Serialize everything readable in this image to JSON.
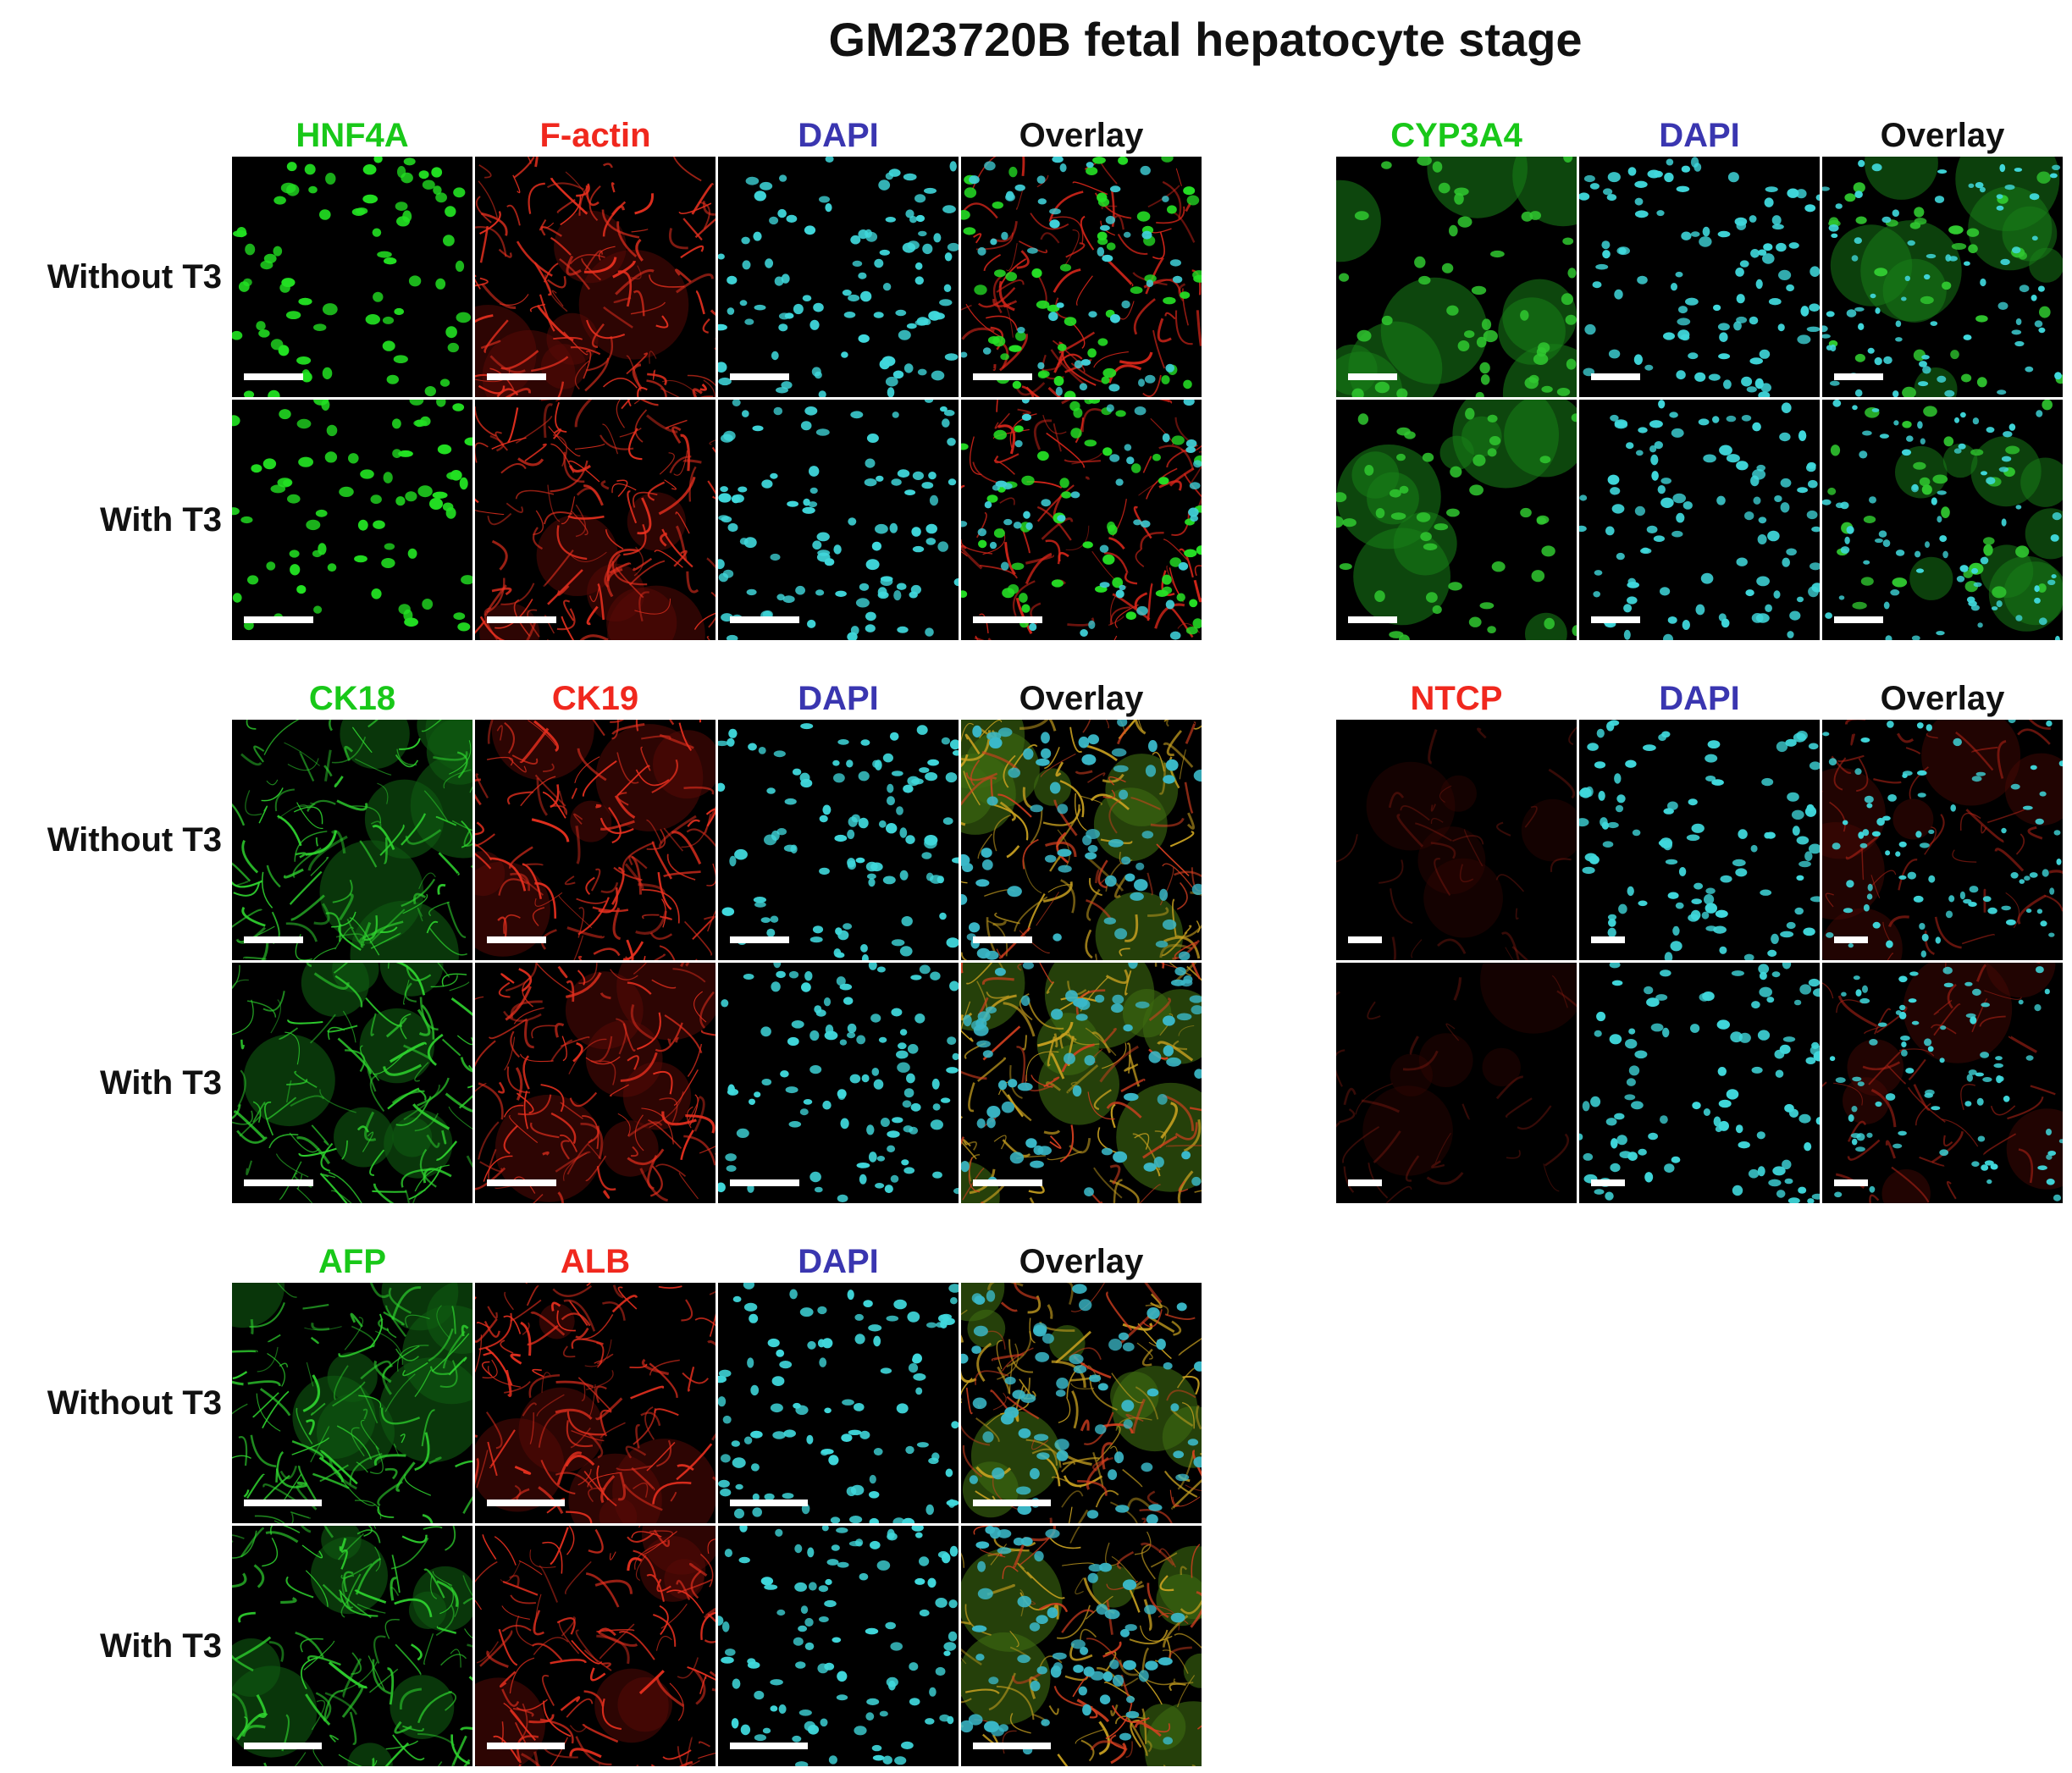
{
  "figure": {
    "title": "GM23720B fetal hepatocyte stage"
  },
  "row_labels": {
    "without": "Without T3",
    "with": "With T3"
  },
  "colors": {
    "green": "#19c819",
    "red": "#f0281e",
    "blue": "#3a36b0",
    "black": "#111111",
    "cyan": "#3fd8dc"
  },
  "blocks": [
    {
      "id": "hnf4a",
      "columns": [
        {
          "label": "HNF4A",
          "color": "green",
          "channel": "green-nuclei"
        },
        {
          "label": "F-actin",
          "color": "red",
          "channel": "red-mesh"
        },
        {
          "label": "DAPI",
          "color": "blue",
          "channel": "cyan-nuclei"
        },
        {
          "label": "Overlay",
          "color": "black",
          "channel": "overlay-gr"
        }
      ]
    },
    {
      "id": "ck18",
      "columns": [
        {
          "label": "CK18",
          "color": "green",
          "channel": "green-mesh"
        },
        {
          "label": "CK19",
          "color": "red",
          "channel": "red-mesh"
        },
        {
          "label": "DAPI",
          "color": "blue",
          "channel": "cyan-nuclei"
        },
        {
          "label": "Overlay",
          "color": "black",
          "channel": "overlay-yellow"
        }
      ]
    },
    {
      "id": "afp",
      "columns": [
        {
          "label": "AFP",
          "color": "green",
          "channel": "green-mesh"
        },
        {
          "label": "ALB",
          "color": "red",
          "channel": "red-mesh"
        },
        {
          "label": "DAPI",
          "color": "blue",
          "channel": "cyan-nuclei"
        },
        {
          "label": "Overlay",
          "color": "black",
          "channel": "overlay-yellow"
        }
      ]
    },
    {
      "id": "cyp3a4",
      "columns": [
        {
          "label": "CYP3A4",
          "color": "green",
          "channel": "green-diffuse"
        },
        {
          "label": "DAPI",
          "color": "blue",
          "channel": "cyan-nuclei"
        },
        {
          "label": "Overlay",
          "color": "black",
          "channel": "overlay-gc"
        }
      ]
    },
    {
      "id": "ntcp",
      "columns": [
        {
          "label": "NTCP",
          "color": "red",
          "channel": "red-dim"
        },
        {
          "label": "DAPI",
          "color": "blue",
          "channel": "cyan-nuclei"
        },
        {
          "label": "Overlay",
          "color": "black",
          "channel": "overlay-rc"
        }
      ]
    }
  ]
}
